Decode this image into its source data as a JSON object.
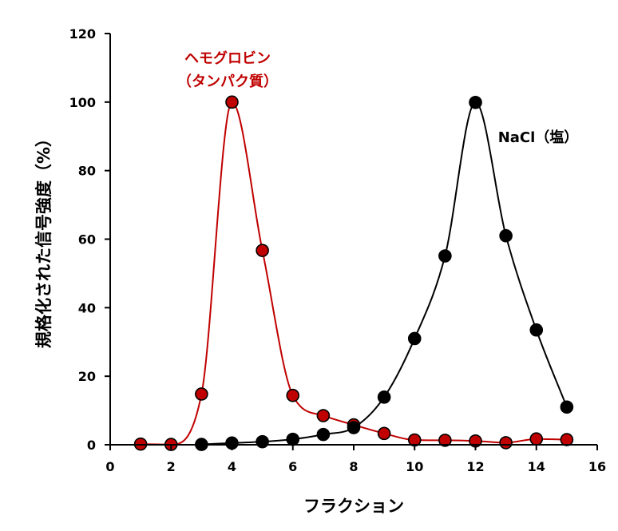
{
  "chart_data": {
    "type": "line",
    "xlabel": "フラクション",
    "ylabel": "規格化された信号強度（%）",
    "xlim": [
      0,
      16
    ],
    "ylim": [
      0,
      120
    ],
    "x_ticks": [
      "0",
      "2",
      "4",
      "6",
      "8",
      "10",
      "12",
      "14",
      "16"
    ],
    "y_ticks": [
      "0",
      "20",
      "40",
      "60",
      "80",
      "100",
      "120"
    ],
    "grid": false,
    "series": [
      {
        "name": "ヘモグロビン（タンパク質）",
        "label_lines": [
          "ヘモグロビン",
          "（タンパク質）"
        ],
        "color": "#c00000",
        "marker_fill": "#c00000",
        "x": [
          1,
          2,
          3,
          4,
          5,
          6,
          7,
          8,
          9,
          10,
          11,
          12,
          13,
          14,
          15
        ],
        "values": [
          0.2,
          0.1,
          14.8,
          100,
          56.7,
          14.4,
          8.5,
          5.8,
          3.3,
          1.4,
          1.3,
          1.1,
          0.6,
          1.7,
          1.5
        ]
      },
      {
        "name": "NaCl（塩）",
        "label_lines": [
          "NaCl（塩）"
        ],
        "color": "#000000",
        "marker_fill": "#000000",
        "x": [
          3,
          4,
          5,
          6,
          7,
          8,
          9,
          10,
          11,
          12,
          13,
          14,
          15
        ],
        "values": [
          0.1,
          0.5,
          0.9,
          1.6,
          3.0,
          5.0,
          13.9,
          31.0,
          55.1,
          99.9,
          61.0,
          33.5,
          11.0
        ]
      }
    ]
  }
}
